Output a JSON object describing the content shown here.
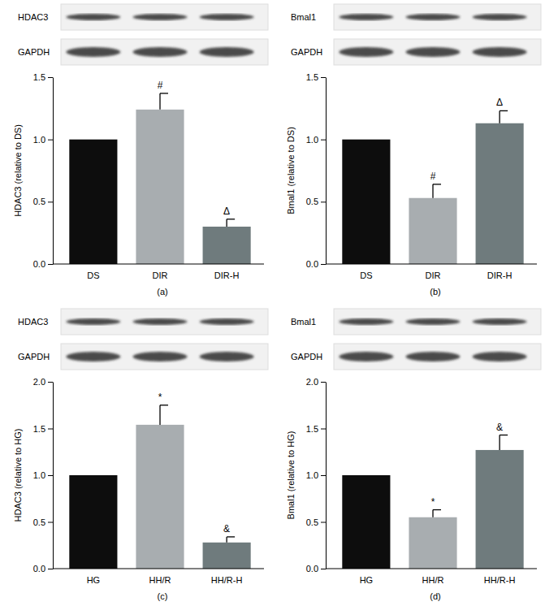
{
  "chart_data": [
    {
      "type": "bar",
      "title": "(a)",
      "blots": [
        "HDAC3",
        "GAPDH"
      ],
      "y_label": "HDAC3 (relative to DS)",
      "categories": [
        "DS",
        "DIR",
        "DIR-H"
      ],
      "values": [
        1.0,
        1.24,
        0.3
      ],
      "errors": [
        null,
        0.13,
        0.06
      ],
      "significance": [
        null,
        "#",
        "Δ"
      ],
      "colors": [
        "#0d0d0d",
        "#a8adb0",
        "#6f7b7d"
      ],
      "ylim": [
        0,
        1.5
      ],
      "yticks": [
        {
          "value": 0,
          "label": "0.0"
        },
        {
          "value": 0.5,
          "label": "0.5"
        },
        {
          "value": 1,
          "label": "1.0"
        },
        {
          "value": 1.5,
          "label": "1.5"
        }
      ]
    },
    {
      "type": "bar",
      "title": "(b)",
      "blots": [
        "Bmal1",
        "GAPDH"
      ],
      "y_label": "Bmal1 (relative to DS)",
      "categories": [
        "DS",
        "DIR",
        "DIR-H"
      ],
      "values": [
        1.0,
        0.53,
        1.13
      ],
      "errors": [
        null,
        0.11,
        0.1
      ],
      "significance": [
        null,
        "#",
        "Δ"
      ],
      "colors": [
        "#0d0d0d",
        "#a8adb0",
        "#6f7b7d"
      ],
      "ylim": [
        0,
        1.5
      ],
      "yticks": [
        {
          "value": 0,
          "label": "0.0"
        },
        {
          "value": 0.5,
          "label": "0.5"
        },
        {
          "value": 1,
          "label": "1.0"
        },
        {
          "value": 1.5,
          "label": "1.5"
        }
      ]
    },
    {
      "type": "bar",
      "title": "(c)",
      "blots": [
        "HDAC3",
        "GAPDH"
      ],
      "y_label": "HDAC3 (relative to HG)",
      "categories": [
        "HG",
        "HH/R",
        "HH/R-H"
      ],
      "values": [
        1.0,
        1.54,
        0.28
      ],
      "errors": [
        null,
        0.21,
        0.06
      ],
      "significance": [
        null,
        "*",
        "&"
      ],
      "colors": [
        "#0d0d0d",
        "#a8adb0",
        "#6f7b7d"
      ],
      "ylim": [
        0,
        2
      ],
      "yticks": [
        {
          "value": 0,
          "label": "0.0"
        },
        {
          "value": 0.5,
          "label": "0.5"
        },
        {
          "value": 1,
          "label": "1.0"
        },
        {
          "value": 1.5,
          "label": "1.5"
        },
        {
          "value": 2,
          "label": "2.0"
        }
      ]
    },
    {
      "type": "bar",
      "title": "(d)",
      "blots": [
        "Bmal1",
        "GAPDH"
      ],
      "y_label": "Bmal1 (relative to HG)",
      "categories": [
        "HG",
        "HH/R",
        "HH/R-H"
      ],
      "values": [
        1.0,
        0.55,
        1.27
      ],
      "errors": [
        null,
        0.08,
        0.16
      ],
      "significance": [
        null,
        "*",
        "&"
      ],
      "colors": [
        "#0d0d0d",
        "#a8adb0",
        "#6f7b7d"
      ],
      "ylim": [
        0,
        2
      ],
      "yticks": [
        {
          "value": 0,
          "label": "0.0"
        },
        {
          "value": 0.5,
          "label": "0.5"
        },
        {
          "value": 1,
          "label": "1.0"
        },
        {
          "value": 1.5,
          "label": "1.5"
        },
        {
          "value": 2,
          "label": "2.0"
        }
      ]
    }
  ]
}
